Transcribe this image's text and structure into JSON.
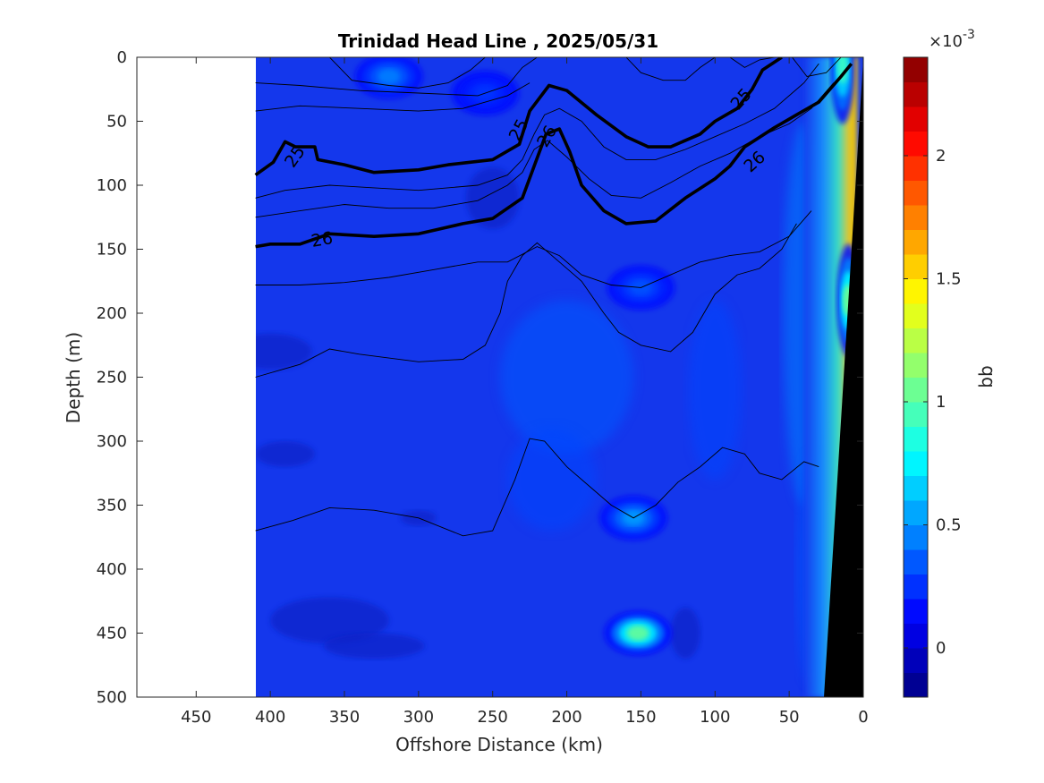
{
  "chart_data": {
    "type": "heatmap",
    "title": "Trinidad Head Line , 2025/05/31",
    "xlabel": "Offshore Distance (km)",
    "ylabel": "Depth (m)",
    "xlim": [
      490,
      0
    ],
    "ylim": [
      0,
      500
    ],
    "x_reversed": true,
    "y_reversed": true,
    "x_ticks": [
      "450",
      "400",
      "350",
      "300",
      "250",
      "200",
      "150",
      "100",
      "50",
      "0"
    ],
    "x_tick_values": [
      450,
      400,
      350,
      300,
      250,
      200,
      150,
      100,
      50,
      0
    ],
    "y_ticks": [
      "0",
      "50",
      "100",
      "150",
      "200",
      "250",
      "300",
      "350",
      "400",
      "450",
      "500"
    ],
    "y_tick_values": [
      0,
      50,
      100,
      150,
      200,
      250,
      300,
      350,
      400,
      450,
      500
    ],
    "data_extent_km": [
      410,
      0
    ],
    "background_color": "#1437ec",
    "colorbar": {
      "label": "bb",
      "exponent_label": "×10",
      "exponent_power": "-3",
      "ticks": [
        "0",
        "0.5",
        "1",
        "1.5",
        "2"
      ],
      "tick_values": [
        0,
        0.5,
        1,
        1.5,
        2
      ],
      "range": [
        -0.2,
        2.4
      ],
      "colormap": "jet"
    },
    "contour_labels": [
      {
        "text": "25",
        "km": 383,
        "depth": 78,
        "angle": -55
      },
      {
        "text": "26",
        "km": 365,
        "depth": 143,
        "angle": -10
      },
      {
        "text": "25",
        "km": 232,
        "depth": 57,
        "angle": -62
      },
      {
        "text": "26",
        "km": 213,
        "depth": 62,
        "angle": -60
      },
      {
        "text": "25",
        "km": 82,
        "depth": 33,
        "angle": -48
      },
      {
        "text": "26",
        "km": 73,
        "depth": 82,
        "angle": -42
      }
    ],
    "bold_contours": [
      {
        "name": "25",
        "points": [
          [
            410,
            92
          ],
          [
            398,
            82
          ],
          [
            390,
            66
          ],
          [
            383,
            70
          ],
          [
            370,
            70
          ],
          [
            368,
            80
          ],
          [
            350,
            84
          ],
          [
            330,
            90
          ],
          [
            300,
            88
          ],
          [
            280,
            84
          ],
          [
            250,
            80
          ],
          [
            232,
            68
          ],
          [
            225,
            42
          ],
          [
            212,
            22
          ],
          [
            200,
            26
          ],
          [
            180,
            45
          ],
          [
            160,
            62
          ],
          [
            145,
            70
          ],
          [
            130,
            70
          ],
          [
            110,
            60
          ],
          [
            100,
            50
          ],
          [
            85,
            40
          ],
          [
            75,
            25
          ],
          [
            68,
            10
          ],
          [
            55,
            0
          ]
        ]
      },
      {
        "name": "26",
        "points": [
          [
            410,
            148
          ],
          [
            400,
            146
          ],
          [
            380,
            146
          ],
          [
            360,
            138
          ],
          [
            330,
            140
          ],
          [
            300,
            138
          ],
          [
            270,
            130
          ],
          [
            250,
            126
          ],
          [
            230,
            110
          ],
          [
            222,
            85
          ],
          [
            214,
            60
          ],
          [
            205,
            56
          ],
          [
            198,
            74
          ],
          [
            190,
            100
          ],
          [
            175,
            120
          ],
          [
            160,
            130
          ],
          [
            140,
            128
          ],
          [
            120,
            110
          ],
          [
            100,
            95
          ],
          [
            90,
            85
          ],
          [
            80,
            70
          ],
          [
            60,
            55
          ],
          [
            45,
            45
          ],
          [
            30,
            35
          ],
          [
            15,
            15
          ],
          [
            8,
            5
          ]
        ]
      }
    ],
    "thin_contours": [
      [
        [
          410,
          20
        ],
        [
          380,
          22
        ],
        [
          340,
          26
        ],
        [
          300,
          28
        ],
        [
          260,
          30
        ],
        [
          240,
          22
        ],
        [
          230,
          8
        ],
        [
          220,
          0
        ]
      ],
      [
        [
          410,
          42
        ],
        [
          380,
          38
        ],
        [
          340,
          40
        ],
        [
          300,
          42
        ],
        [
          270,
          40
        ],
        [
          240,
          30
        ],
        [
          225,
          20
        ]
      ],
      [
        [
          410,
          110
        ],
        [
          390,
          104
        ],
        [
          360,
          100
        ],
        [
          330,
          102
        ],
        [
          300,
          104
        ],
        [
          260,
          100
        ],
        [
          240,
          92
        ],
        [
          230,
          80
        ],
        [
          222,
          60
        ],
        [
          215,
          45
        ],
        [
          205,
          40
        ],
        [
          190,
          50
        ],
        [
          175,
          70
        ],
        [
          160,
          80
        ],
        [
          140,
          80
        ],
        [
          120,
          72
        ],
        [
          100,
          62
        ],
        [
          80,
          52
        ],
        [
          60,
          40
        ],
        [
          40,
          20
        ],
        [
          30,
          5
        ]
      ],
      [
        [
          410,
          125
        ],
        [
          380,
          120
        ],
        [
          350,
          115
        ],
        [
          320,
          118
        ],
        [
          290,
          118
        ],
        [
          260,
          112
        ],
        [
          240,
          100
        ],
        [
          230,
          90
        ],
        [
          222,
          72
        ],
        [
          213,
          65
        ],
        [
          200,
          78
        ],
        [
          185,
          95
        ],
        [
          170,
          108
        ],
        [
          150,
          110
        ],
        [
          130,
          98
        ],
        [
          110,
          85
        ],
        [
          90,
          75
        ],
        [
          70,
          62
        ],
        [
          50,
          52
        ],
        [
          35,
          40
        ],
        [
          20,
          20
        ]
      ],
      [
        [
          410,
          178
        ],
        [
          380,
          178
        ],
        [
          350,
          176
        ],
        [
          320,
          172
        ],
        [
          290,
          166
        ],
        [
          260,
          160
        ],
        [
          240,
          160
        ],
        [
          220,
          148
        ],
        [
          205,
          155
        ],
        [
          190,
          170
        ],
        [
          170,
          178
        ],
        [
          150,
          180
        ],
        [
          130,
          170
        ],
        [
          110,
          160
        ],
        [
          90,
          155
        ],
        [
          70,
          152
        ],
        [
          50,
          140
        ],
        [
          35,
          120
        ]
      ],
      [
        [
          410,
          250
        ],
        [
          380,
          240
        ],
        [
          360,
          228
        ],
        [
          340,
          232
        ],
        [
          300,
          238
        ],
        [
          270,
          236
        ],
        [
          255,
          225
        ],
        [
          245,
          200
        ],
        [
          240,
          175
        ],
        [
          230,
          155
        ],
        [
          220,
          145
        ],
        [
          205,
          160
        ],
        [
          190,
          175
        ],
        [
          175,
          200
        ],
        [
          165,
          215
        ],
        [
          150,
          225
        ],
        [
          130,
          230
        ],
        [
          115,
          215
        ],
        [
          100,
          185
        ],
        [
          85,
          170
        ],
        [
          70,
          165
        ],
        [
          55,
          150
        ],
        [
          45,
          130
        ]
      ],
      [
        [
          410,
          370
        ],
        [
          385,
          362
        ],
        [
          360,
          352
        ],
        [
          330,
          354
        ],
        [
          300,
          360
        ],
        [
          270,
          374
        ],
        [
          250,
          370
        ],
        [
          235,
          330
        ],
        [
          225,
          298
        ],
        [
          215,
          300
        ],
        [
          200,
          320
        ],
        [
          185,
          335
        ],
        [
          170,
          350
        ],
        [
          155,
          360
        ],
        [
          140,
          350
        ],
        [
          125,
          332
        ],
        [
          110,
          320
        ],
        [
          95,
          305
        ],
        [
          80,
          310
        ],
        [
          70,
          325
        ],
        [
          55,
          330
        ],
        [
          40,
          316
        ],
        [
          30,
          320
        ]
      ]
    ],
    "shallow_contours": [
      [
        [
          360,
          0
        ],
        [
          345,
          18
        ],
        [
          320,
          22
        ],
        [
          300,
          24
        ],
        [
          280,
          20
        ],
        [
          265,
          10
        ],
        [
          255,
          0
        ]
      ],
      [
        [
          160,
          0
        ],
        [
          150,
          12
        ],
        [
          135,
          18
        ],
        [
          120,
          18
        ],
        [
          110,
          8
        ],
        [
          100,
          0
        ]
      ],
      [
        [
          90,
          0
        ],
        [
          80,
          8
        ],
        [
          70,
          2
        ],
        [
          60,
          0
        ]
      ],
      [
        [
          48,
          0
        ],
        [
          38,
          15
        ],
        [
          25,
          12
        ],
        [
          15,
          0
        ]
      ]
    ],
    "features": [
      {
        "name": "surface-patch",
        "km": 320,
        "depth": 15,
        "value": 0.75
      },
      {
        "name": "subsurface-patch",
        "km": 255,
        "depth": 28,
        "value": 0.5
      },
      {
        "name": "mid-patch",
        "km": 150,
        "depth": 180,
        "value": 0.6
      },
      {
        "name": "patch-360",
        "km": 155,
        "depth": 360,
        "value": 0.85
      },
      {
        "name": "patch-450",
        "km": 152,
        "depth": 450,
        "value": 1.55
      },
      {
        "name": "shelf-high",
        "km": 10,
        "depth": 190,
        "value": 1.6
      },
      {
        "name": "shelf-surface",
        "km": 14,
        "depth": 8,
        "value": 1.4
      }
    ]
  }
}
